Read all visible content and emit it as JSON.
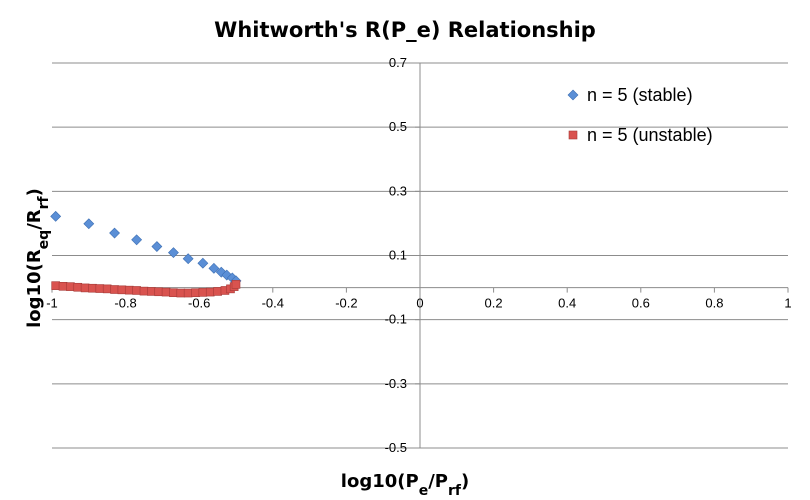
{
  "chart_data": {
    "type": "scatter",
    "title": "Whitworth's R(P_e) Relationship",
    "xlabel": {
      "parts": [
        {
          "text": "log10(P",
          "sub": false
        },
        {
          "text": "e",
          "sub": true
        },
        {
          "text": "/P",
          "sub": false
        },
        {
          "text": "rf",
          "sub": true
        },
        {
          "text": ")",
          "sub": false
        }
      ]
    },
    "ylabel": {
      "parts": [
        {
          "text": "log10(R",
          "sub": false
        },
        {
          "text": "eq",
          "sub": true
        },
        {
          "text": "/R",
          "sub": false
        },
        {
          "text": "rf",
          "sub": true
        },
        {
          "text": ")",
          "sub": false
        }
      ]
    },
    "xlim": [
      -1,
      1
    ],
    "ylim": [
      -0.5,
      0.7
    ],
    "x_ticks": [
      "-1",
      "-0.8",
      "-0.6",
      "-0.4",
      "-0.2",
      "0",
      "0.2",
      "0.4",
      "0.6",
      "0.8",
      "1"
    ],
    "y_ticks": [
      "-0.5",
      "-0.3",
      "-0.1",
      "0.1",
      "0.3",
      "0.5",
      "0.7"
    ],
    "grid": "horizontal",
    "legend_position": "top-right",
    "series": [
      {
        "name": "n = 5 (stable)",
        "marker": "diamond",
        "color": "#5b8fd6",
        "points": [
          [
            -0.99,
            0.222
          ],
          [
            -0.9,
            0.199
          ],
          [
            -0.83,
            0.17
          ],
          [
            -0.77,
            0.149
          ],
          [
            -0.715,
            0.128
          ],
          [
            -0.67,
            0.109
          ],
          [
            -0.63,
            0.09
          ],
          [
            -0.59,
            0.076
          ],
          [
            -0.56,
            0.06
          ],
          [
            -0.54,
            0.048
          ],
          [
            -0.525,
            0.039
          ],
          [
            -0.51,
            0.03
          ],
          [
            -0.5,
            0.021
          ]
        ]
      },
      {
        "name": "n = 5 (unstable)",
        "marker": "square",
        "color": "#d9534f",
        "points": [
          [
            -0.99,
            0.006
          ],
          [
            -0.97,
            0.004
          ],
          [
            -0.95,
            0.003
          ],
          [
            -0.93,
            0.001
          ],
          [
            -0.91,
            -0.001
          ],
          [
            -0.89,
            -0.002
          ],
          [
            -0.87,
            -0.003
          ],
          [
            -0.85,
            -0.004
          ],
          [
            -0.83,
            -0.006
          ],
          [
            -0.81,
            -0.007
          ],
          [
            -0.79,
            -0.008
          ],
          [
            -0.77,
            -0.009
          ],
          [
            -0.75,
            -0.011
          ],
          [
            -0.73,
            -0.012
          ],
          [
            -0.71,
            -0.013
          ],
          [
            -0.69,
            -0.014
          ],
          [
            -0.67,
            -0.016
          ],
          [
            -0.65,
            -0.017
          ],
          [
            -0.63,
            -0.017
          ],
          [
            -0.61,
            -0.016
          ],
          [
            -0.59,
            -0.015
          ],
          [
            -0.57,
            -0.014
          ],
          [
            -0.55,
            -0.012
          ],
          [
            -0.53,
            -0.009
          ],
          [
            -0.515,
            -0.004
          ],
          [
            -0.505,
            0.003
          ],
          [
            -0.5,
            0.01
          ]
        ]
      }
    ]
  }
}
